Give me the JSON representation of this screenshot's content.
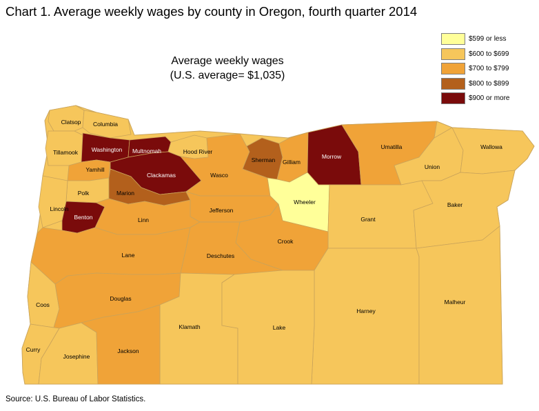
{
  "title": "Chart 1. Average weekly wages by county in Oregon, fourth quarter 2014",
  "map_title": {
    "line1": "Average weekly wages",
    "line2": "(U.S. average= $1,035)"
  },
  "source": "Source: U.S. Bureau of Labor Statistics.",
  "legend": [
    {
      "label": "$599 or less",
      "color": "#ffff99"
    },
    {
      "label": "$600 to $699",
      "color": "#f6c65b"
    },
    {
      "label": "$700 to $799",
      "color": "#f0a338"
    },
    {
      "label": "$800 to $899",
      "color": "#b3601c"
    },
    {
      "label": "$900 or more",
      "color": "#7a0b0b"
    }
  ],
  "counties": [
    {
      "name": "Clatsop",
      "wage_class": "$600 to $699"
    },
    {
      "name": "Columbia",
      "wage_class": "$600 to $699"
    },
    {
      "name": "Tillamook",
      "wage_class": "$600 to $699"
    },
    {
      "name": "Washington",
      "wage_class": "$900 or more"
    },
    {
      "name": "Multnomah",
      "wage_class": "$900 or more"
    },
    {
      "name": "Hood River",
      "wage_class": "$600 to $699"
    },
    {
      "name": "Yamhill",
      "wage_class": "$700 to $799"
    },
    {
      "name": "Clackamas",
      "wage_class": "$900 or more"
    },
    {
      "name": "Wasco",
      "wage_class": "$700 to $799"
    },
    {
      "name": "Sherman",
      "wage_class": "$800 to $899"
    },
    {
      "name": "Gilliam",
      "wage_class": "$700 to $799"
    },
    {
      "name": "Morrow",
      "wage_class": "$900 or more"
    },
    {
      "name": "Umatilla",
      "wage_class": "$700 to $799"
    },
    {
      "name": "Union",
      "wage_class": "$600 to $699"
    },
    {
      "name": "Wallowa",
      "wage_class": "$600 to $699"
    },
    {
      "name": "Polk",
      "wage_class": "$600 to $699"
    },
    {
      "name": "Marion",
      "wage_class": "$800 to $899"
    },
    {
      "name": "Jefferson",
      "wage_class": "$700 to $799"
    },
    {
      "name": "Wheeler",
      "wage_class": "$599 or less"
    },
    {
      "name": "Lincoln",
      "wage_class": "$600 to $699"
    },
    {
      "name": "Benton",
      "wage_class": "$900 or more"
    },
    {
      "name": "Linn",
      "wage_class": "$700 to $799"
    },
    {
      "name": "Grant",
      "wage_class": "$600 to $699"
    },
    {
      "name": "Baker",
      "wage_class": "$600 to $699"
    },
    {
      "name": "Crook",
      "wage_class": "$700 to $799"
    },
    {
      "name": "Lane",
      "wage_class": "$700 to $799"
    },
    {
      "name": "Deschutes",
      "wage_class": "$700 to $799"
    },
    {
      "name": "Coos",
      "wage_class": "$600 to $699"
    },
    {
      "name": "Douglas",
      "wage_class": "$700 to $799"
    },
    {
      "name": "Harney",
      "wage_class": "$600 to $699"
    },
    {
      "name": "Malheur",
      "wage_class": "$600 to $699"
    },
    {
      "name": "Klamath",
      "wage_class": "$600 to $699"
    },
    {
      "name": "Lake",
      "wage_class": "$600 to $699"
    },
    {
      "name": "Curry",
      "wage_class": "$600 to $699"
    },
    {
      "name": "Josephine",
      "wage_class": "$600 to $699"
    },
    {
      "name": "Jackson",
      "wage_class": "$700 to $799"
    }
  ]
}
